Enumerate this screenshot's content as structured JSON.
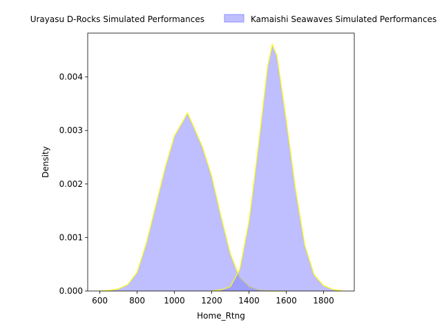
{
  "chart_data": {
    "type": "area",
    "xlabel": "Home_Rtng",
    "ylabel": "Density",
    "xlim": [
      535,
      1965
    ],
    "ylim": [
      0,
      0.00482
    ],
    "x_ticks": [
      600,
      800,
      1000,
      1200,
      1400,
      1600,
      1800
    ],
    "x_tick_labels": [
      "600",
      "800",
      "1000",
      "1200",
      "1400",
      "1600",
      "1800"
    ],
    "y_ticks": [
      0,
      0.001,
      0.002,
      0.003,
      0.004
    ],
    "y_tick_labels": [
      "0.000",
      "0.001",
      "0.002",
      "0.003",
      "0.004"
    ],
    "grid": false,
    "legend_position": "top-center",
    "series": [
      {
        "name": "Urayasu D-Rocks Simulated Performances",
        "fill_color": "#8080ff",
        "fill_opacity": 0.5,
        "edge_color": "#ffff00",
        "x": [
          600,
          650,
          700,
          750,
          800,
          850,
          900,
          950,
          1000,
          1050,
          1070,
          1100,
          1150,
          1200,
          1250,
          1300,
          1350,
          1400,
          1450,
          1500,
          1550,
          1600
        ],
        "y": [
          0.0,
          1e-05,
          4e-05,
          0.00012,
          0.00035,
          0.0009,
          0.0016,
          0.0023,
          0.0029,
          0.0032,
          0.00333,
          0.0031,
          0.0027,
          0.00215,
          0.0014,
          0.0007,
          0.00025,
          8e-05,
          2e-05,
          0.0,
          0.0,
          0.0
        ]
      },
      {
        "name": "Kamaishi Seawaves Simulated Performances",
        "fill_color": "#8080ff",
        "fill_opacity": 0.5,
        "edge_color": "#ffff00",
        "x": [
          1200,
          1250,
          1300,
          1350,
          1400,
          1450,
          1500,
          1525,
          1550,
          1600,
          1650,
          1700,
          1750,
          1800,
          1850,
          1900
        ],
        "y": [
          0.0,
          2e-05,
          8e-05,
          0.0004,
          0.0013,
          0.0027,
          0.0042,
          0.00461,
          0.0044,
          0.0032,
          0.0019,
          0.00085,
          0.0003,
          0.0001,
          3e-05,
          0.0
        ]
      }
    ]
  }
}
